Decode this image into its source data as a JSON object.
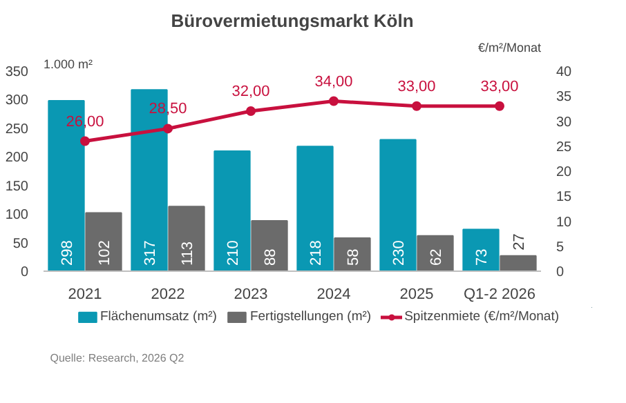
{
  "chart_data": {
    "type": "bar",
    "title": "Bürovermietungsmarkt Köln",
    "ylabel": "1.000 m²",
    "y2label": "€/m²/Monat",
    "categories": [
      "2021",
      "2022",
      "2023",
      "2024",
      "2025",
      "Q1-2 2026"
    ],
    "series": [
      {
        "name": "Flächenumsatz (m²)",
        "color": "#0a98b3",
        "values": [
          298,
          317,
          210,
          218,
          230,
          73
        ],
        "data_labels": true
      },
      {
        "name": "Fertigstellungen (m²)",
        "color": "#6b6b6b",
        "values": [
          102,
          113,
          88,
          58,
          62,
          27
        ],
        "data_labels": true
      },
      {
        "name": "Spitzenmiete (€/m²/Monat)",
        "type": "line",
        "axis": "y2",
        "color": "#c8103e",
        "marker": "circle",
        "values": [
          26.0,
          28.5,
          32.0,
          34.0,
          33.0,
          33.0
        ],
        "value_labels": [
          "26,00",
          "28,50",
          "32,00",
          "34,00",
          "33,00",
          "33,00"
        ]
      }
    ],
    "ylim": [
      0,
      350
    ],
    "yticks": [
      0,
      50,
      100,
      150,
      200,
      250,
      300,
      350
    ],
    "y2lim": [
      0,
      40
    ],
    "y2ticks": [
      0,
      5,
      10,
      15,
      20,
      25,
      30,
      35,
      40
    ],
    "grid": false,
    "legend": "bottom",
    "annotations": [
      "Quelle: Research, 2026 Q2"
    ]
  }
}
